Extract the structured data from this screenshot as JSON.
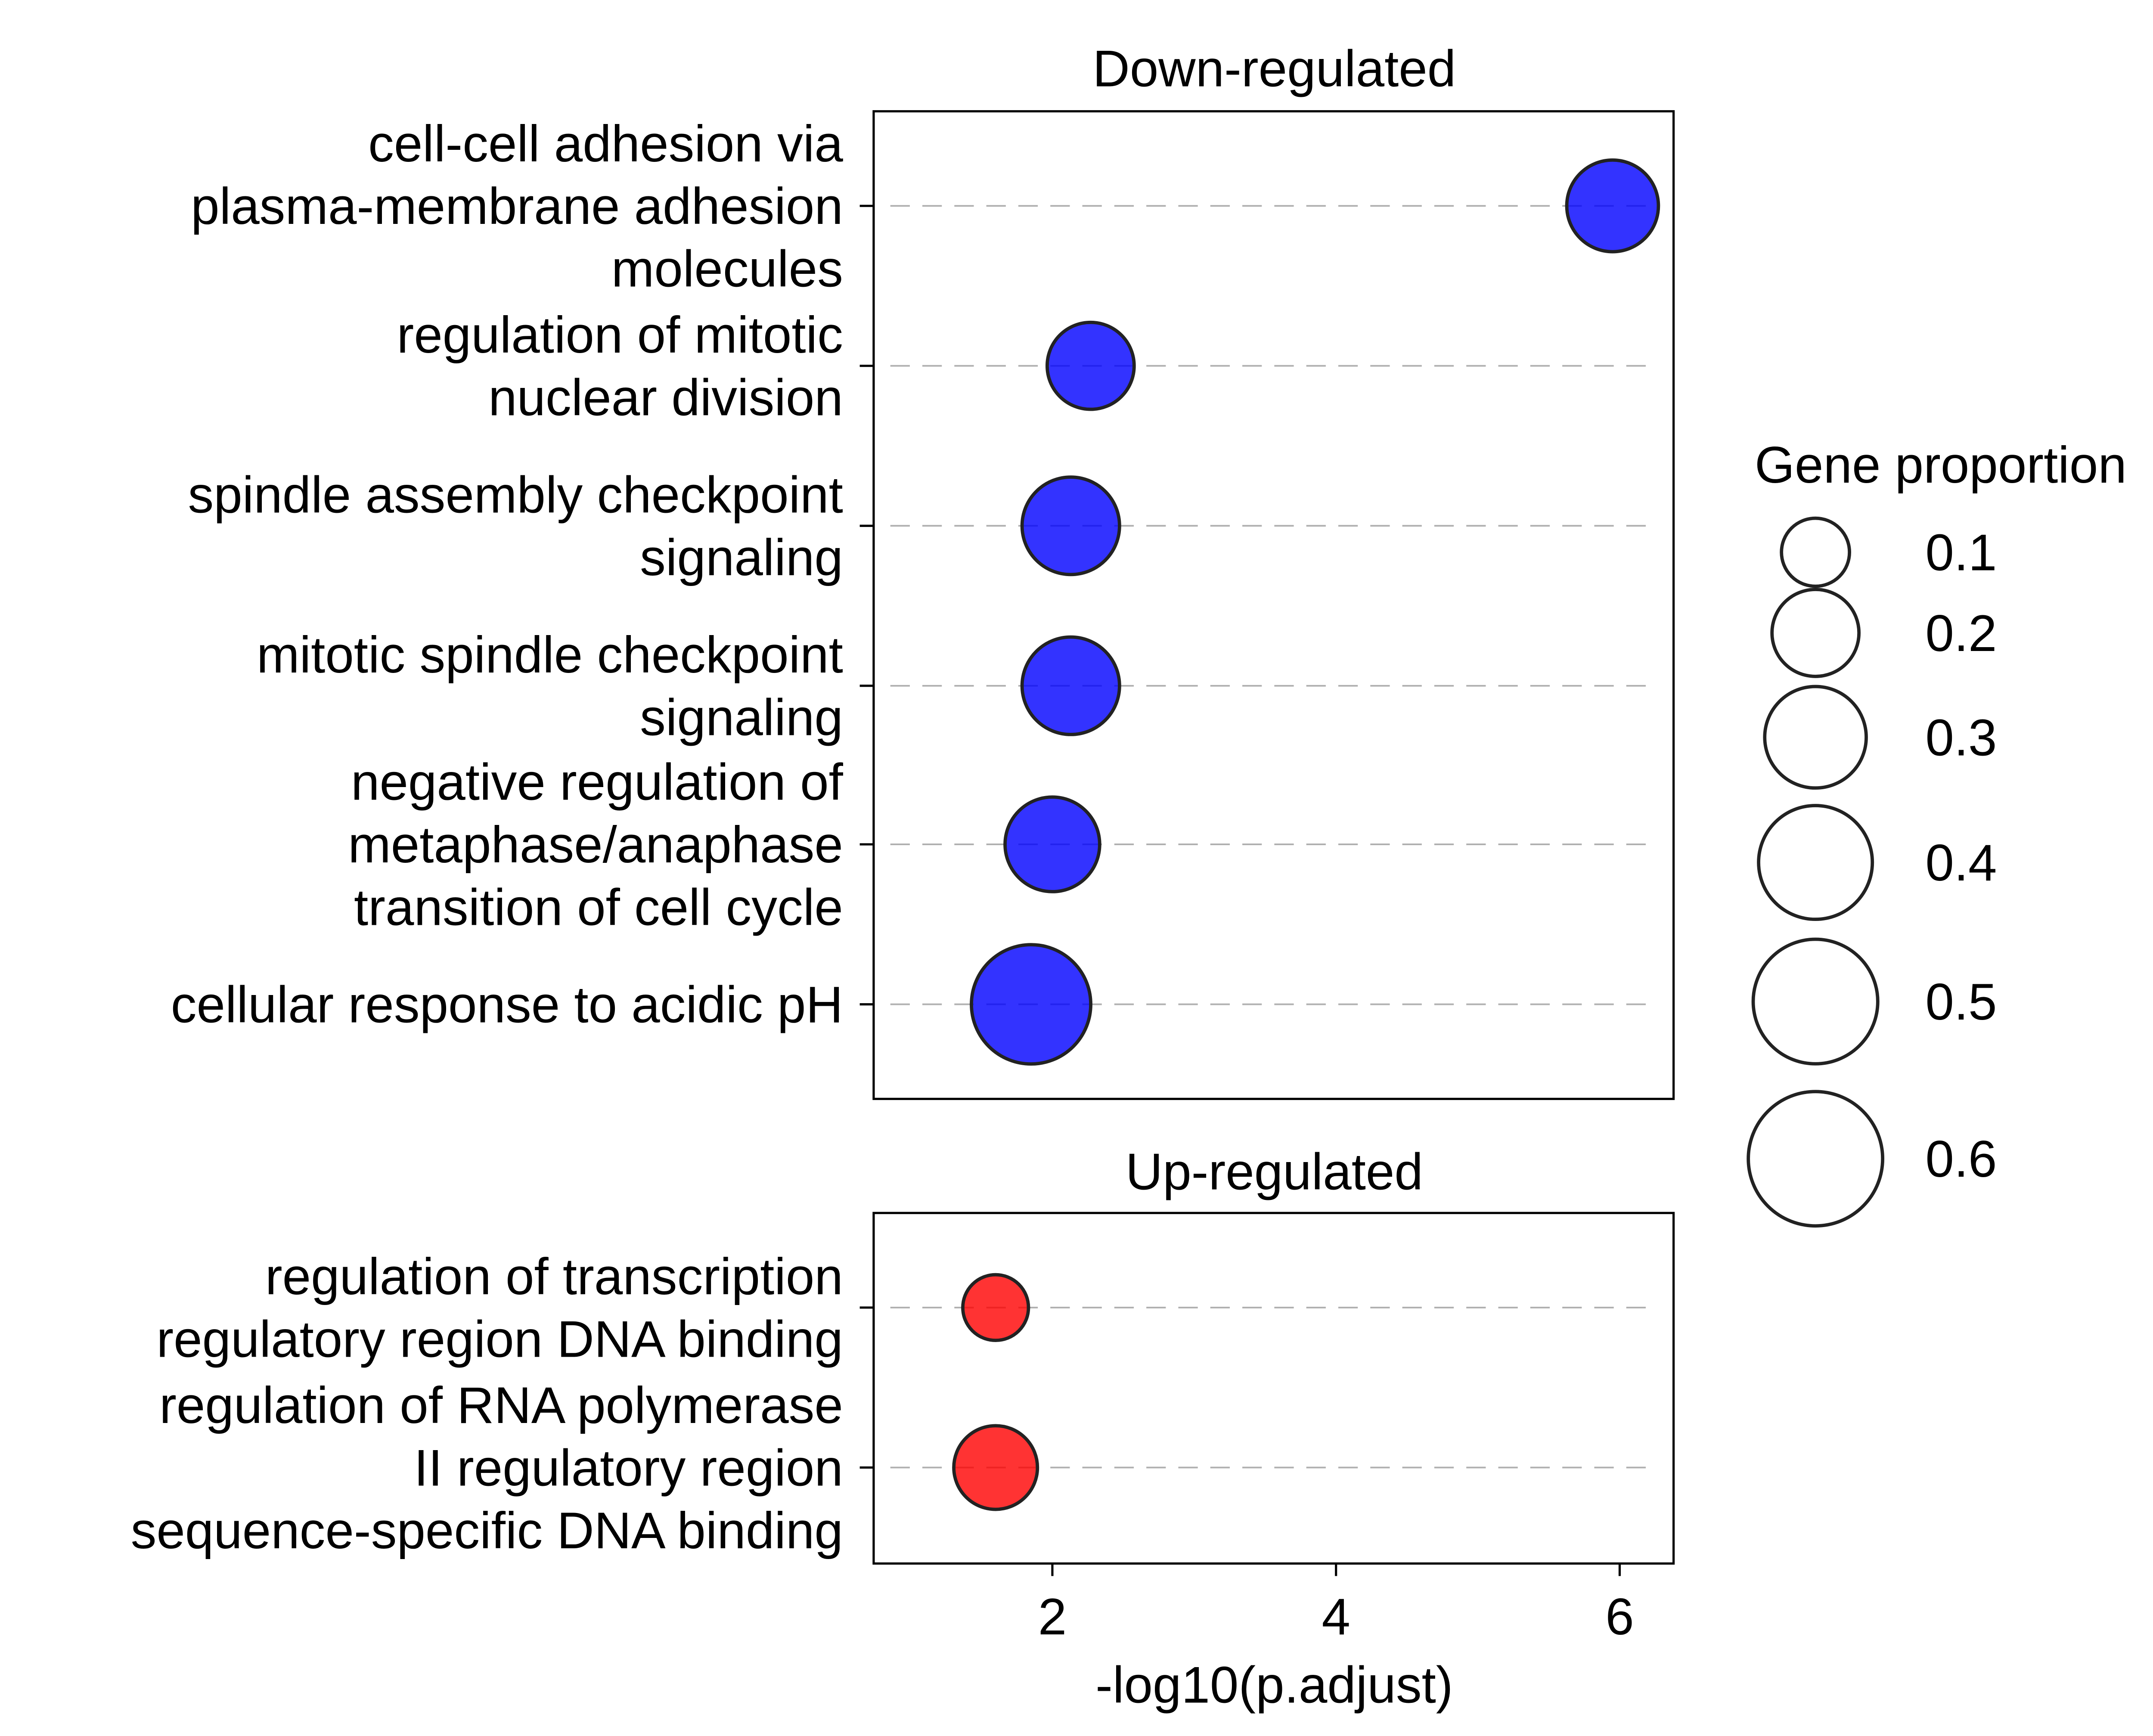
{
  "chart_data": [
    {
      "type": "scatter",
      "title": "Down-regulated",
      "series_color": "#0000ff",
      "categories": [
        [
          "cell-cell adhesion via",
          "plasma-membrane adhesion",
          "molecules"
        ],
        [
          "regulation of mitotic",
          "nuclear division"
        ],
        [
          "spindle assembly checkpoint",
          "signaling"
        ],
        [
          "mitotic spindle checkpoint",
          "signaling"
        ],
        [
          "negative regulation of",
          "metaphase/anaphase",
          "transition of cell cycle"
        ],
        [
          "cellular response to acidic pH"
        ]
      ],
      "values": [
        5.95,
        2.27,
        2.13,
        2.13,
        2.0,
        1.85
      ],
      "size_values": [
        0.23,
        0.2,
        0.27,
        0.27,
        0.25,
        0.45
      ]
    },
    {
      "type": "scatter",
      "title": "Up-regulated",
      "series_color": "#ff0000",
      "categories": [
        [
          "regulation of transcription",
          "regulatory region DNA binding"
        ],
        [
          "regulation of RNA polymerase",
          "II regulatory region",
          "sequence-specific DNA binding"
        ]
      ],
      "values": [
        1.6,
        1.6
      ],
      "size_values": [
        0.09,
        0.18
      ]
    }
  ],
  "x_axis": {
    "label": "-log10(p.adjust)",
    "ticks": [
      2,
      4,
      6
    ],
    "xlim": [
      0.74,
      6.38
    ]
  },
  "legend": {
    "title": "Gene proportion",
    "position": "right",
    "entries": [
      {
        "label": "0.1",
        "value": 0.1
      },
      {
        "label": "0.2",
        "value": 0.2
      },
      {
        "label": "0.3",
        "value": 0.3
      },
      {
        "label": "0.4",
        "value": 0.4
      },
      {
        "label": "0.5",
        "value": 0.5
      },
      {
        "label": "0.6",
        "value": 0.6
      }
    ]
  },
  "gridlines": "dashed horizontal",
  "colors": {
    "down": "#0000ff",
    "up": "#ff0000",
    "marker_edge": "#222222",
    "grid": "#b0b0b0"
  }
}
